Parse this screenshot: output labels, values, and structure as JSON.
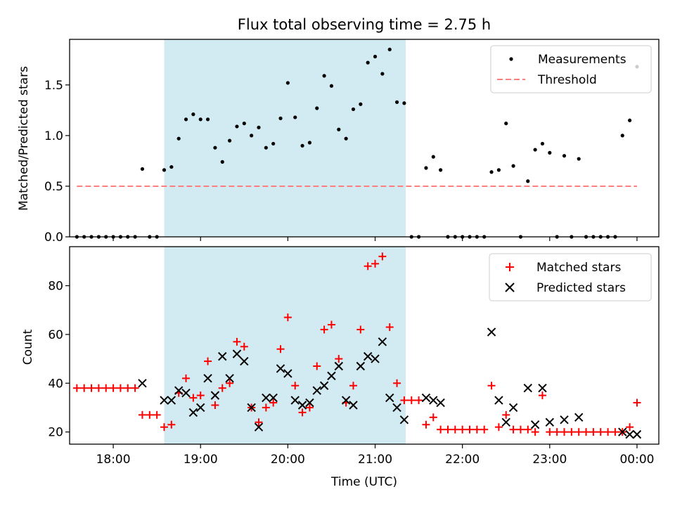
{
  "title": "Flux total observing time = 2.75 h",
  "shaded_region": {
    "start": "18:35",
    "end": "21:21",
    "color": "#add8e6"
  },
  "chart_data": [
    {
      "type": "scatter",
      "panel": "top",
      "ylabel": "Matched/Predicted stars",
      "xlim": [
        "17:30",
        "00:15"
      ],
      "ylim": [
        0,
        1.95
      ],
      "yticks": [
        0.0,
        0.5,
        1.0,
        1.5
      ],
      "ytick_labels": [
        "0.0",
        "0.5",
        "1.0",
        "1.5"
      ],
      "legend_position": "upper right",
      "series": [
        {
          "name": "Measurements",
          "marker": "dot",
          "color": "#000000",
          "points": [
            [
              "17:35",
              0
            ],
            [
              "17:40",
              0
            ],
            [
              "17:45",
              0
            ],
            [
              "17:50",
              0
            ],
            [
              "17:55",
              0
            ],
            [
              "18:00",
              0
            ],
            [
              "18:05",
              0
            ],
            [
              "18:10",
              0
            ],
            [
              "18:15",
              0
            ],
            [
              "18:25",
              0
            ],
            [
              "18:30",
              0
            ],
            [
              "18:20",
              0.67
            ],
            [
              "18:35",
              0.66
            ],
            [
              "18:40",
              0.69
            ],
            [
              "18:45",
              0.97
            ],
            [
              "18:50",
              1.16
            ],
            [
              "18:55",
              1.21
            ],
            [
              "19:00",
              1.16
            ],
            [
              "19:05",
              1.16
            ],
            [
              "19:10",
              0.88
            ],
            [
              "19:15",
              0.74
            ],
            [
              "19:20",
              0.95
            ],
            [
              "19:25",
              1.09
            ],
            [
              "19:30",
              1.12
            ],
            [
              "19:35",
              1.0
            ],
            [
              "19:40",
              1.08
            ],
            [
              "19:45",
              0.88
            ],
            [
              "19:50",
              0.92
            ],
            [
              "19:55",
              1.17
            ],
            [
              "20:00",
              1.52
            ],
            [
              "20:05",
              1.18
            ],
            [
              "20:10",
              0.9
            ],
            [
              "20:15",
              0.93
            ],
            [
              "20:20",
              1.27
            ],
            [
              "20:25",
              1.59
            ],
            [
              "20:30",
              1.49
            ],
            [
              "20:35",
              1.06
            ],
            [
              "20:40",
              0.97
            ],
            [
              "20:45",
              1.26
            ],
            [
              "20:50",
              1.31
            ],
            [
              "20:55",
              1.72
            ],
            [
              "21:00",
              1.78
            ],
            [
              "21:05",
              1.61
            ],
            [
              "21:10",
              1.85
            ],
            [
              "21:15",
              1.33
            ],
            [
              "21:20",
              1.32
            ],
            [
              "21:25",
              0
            ],
            [
              "21:30",
              0
            ],
            [
              "21:35",
              0.68
            ],
            [
              "21:40",
              0.79
            ],
            [
              "21:45",
              0.66
            ],
            [
              "21:50",
              0
            ],
            [
              "21:55",
              0
            ],
            [
              "22:00",
              0
            ],
            [
              "22:05",
              0
            ],
            [
              "22:10",
              0
            ],
            [
              "22:15",
              0
            ],
            [
              "22:20",
              0.64
            ],
            [
              "22:25",
              0.66
            ],
            [
              "22:30",
              1.12
            ],
            [
              "22:35",
              0.7
            ],
            [
              "22:40",
              0
            ],
            [
              "22:45",
              0.55
            ],
            [
              "22:50",
              0.86
            ],
            [
              "22:55",
              0.92
            ],
            [
              "23:00",
              0.83
            ],
            [
              "23:05",
              0
            ],
            [
              "23:10",
              0.8
            ],
            [
              "23:15",
              0
            ],
            [
              "23:20",
              0.77
            ],
            [
              "23:25",
              0
            ],
            [
              "23:30",
              0
            ],
            [
              "23:35",
              0
            ],
            [
              "23:40",
              0
            ],
            [
              "23:45",
              0
            ],
            [
              "23:50",
              1.0
            ],
            [
              "23:55",
              1.15
            ],
            [
              "00:00",
              1.68
            ]
          ]
        },
        {
          "name": "Threshold",
          "marker": "dashed-line",
          "color": "#ff7f7f",
          "points": [
            [
              "17:35",
              0.5
            ],
            [
              "00:00",
              0.5
            ]
          ]
        }
      ]
    },
    {
      "type": "scatter",
      "panel": "bottom",
      "xlabel": "Time (UTC)",
      "ylabel": "Count",
      "xlim": [
        "17:30",
        "00:15"
      ],
      "ylim": [
        15,
        96
      ],
      "yticks": [
        20,
        40,
        60,
        80
      ],
      "ytick_labels": [
        "20",
        "40",
        "60",
        "80"
      ],
      "xtick_labels": [
        "18:00",
        "19:00",
        "20:00",
        "21:00",
        "22:00",
        "23:00",
        "00:00"
      ],
      "legend_position": "upper right",
      "series": [
        {
          "name": "Matched stars",
          "marker": "plus",
          "color": "#ff0000",
          "points": [
            [
              "17:35",
              38
            ],
            [
              "17:40",
              38
            ],
            [
              "17:45",
              38
            ],
            [
              "17:50",
              38
            ],
            [
              "17:55",
              38
            ],
            [
              "18:00",
              38
            ],
            [
              "18:05",
              38
            ],
            [
              "18:10",
              38
            ],
            [
              "18:15",
              38
            ],
            [
              "18:20",
              27
            ],
            [
              "18:25",
              27
            ],
            [
              "18:30",
              27
            ],
            [
              "18:35",
              22
            ],
            [
              "18:40",
              23
            ],
            [
              "18:45",
              36
            ],
            [
              "18:50",
              42
            ],
            [
              "18:55",
              34
            ],
            [
              "19:00",
              35
            ],
            [
              "19:05",
              49
            ],
            [
              "19:10",
              31
            ],
            [
              "19:15",
              38
            ],
            [
              "19:20",
              40
            ],
            [
              "19:25",
              57
            ],
            [
              "19:30",
              55
            ],
            [
              "19:35",
              30
            ],
            [
              "19:40",
              24
            ],
            [
              "19:45",
              30
            ],
            [
              "19:50",
              32
            ],
            [
              "19:55",
              54
            ],
            [
              "20:00",
              67
            ],
            [
              "20:05",
              39
            ],
            [
              "20:10",
              28
            ],
            [
              "20:15",
              30
            ],
            [
              "20:20",
              47
            ],
            [
              "20:25",
              62
            ],
            [
              "20:30",
              64
            ],
            [
              "20:35",
              50
            ],
            [
              "20:40",
              32
            ],
            [
              "20:45",
              39
            ],
            [
              "20:50",
              62
            ],
            [
              "20:55",
              88
            ],
            [
              "21:00",
              89
            ],
            [
              "21:05",
              92
            ],
            [
              "21:10",
              63
            ],
            [
              "21:15",
              40
            ],
            [
              "21:20",
              33
            ],
            [
              "21:25",
              33
            ],
            [
              "21:30",
              33
            ],
            [
              "21:35",
              23
            ],
            [
              "21:40",
              26
            ],
            [
              "21:45",
              21
            ],
            [
              "21:50",
              21
            ],
            [
              "21:55",
              21
            ],
            [
              "22:00",
              21
            ],
            [
              "22:05",
              21
            ],
            [
              "22:10",
              21
            ],
            [
              "22:15",
              21
            ],
            [
              "22:20",
              39
            ],
            [
              "22:25",
              22
            ],
            [
              "22:30",
              27
            ],
            [
              "22:35",
              21
            ],
            [
              "22:40",
              21
            ],
            [
              "22:45",
              21
            ],
            [
              "22:50",
              20
            ],
            [
              "22:55",
              35
            ],
            [
              "23:00",
              20
            ],
            [
              "23:05",
              20
            ],
            [
              "23:10",
              20
            ],
            [
              "23:15",
              20
            ],
            [
              "23:20",
              20
            ],
            [
              "23:25",
              20
            ],
            [
              "23:30",
              20
            ],
            [
              "23:35",
              20
            ],
            [
              "23:40",
              20
            ],
            [
              "23:45",
              20
            ],
            [
              "23:50",
              20
            ],
            [
              "23:55",
              22
            ],
            [
              "00:00",
              32
            ]
          ]
        },
        {
          "name": "Predicted stars",
          "marker": "x",
          "color": "#000000",
          "points": [
            [
              "18:20",
              40
            ],
            [
              "18:35",
              33
            ],
            [
              "18:40",
              33
            ],
            [
              "18:45",
              37
            ],
            [
              "18:50",
              36
            ],
            [
              "18:55",
              28
            ],
            [
              "19:00",
              30
            ],
            [
              "19:05",
              42
            ],
            [
              "19:10",
              35
            ],
            [
              "19:15",
              51
            ],
            [
              "19:20",
              42
            ],
            [
              "19:25",
              52
            ],
            [
              "19:30",
              49
            ],
            [
              "19:35",
              30
            ],
            [
              "19:40",
              22
            ],
            [
              "19:45",
              34
            ],
            [
              "19:50",
              34
            ],
            [
              "19:55",
              46
            ],
            [
              "20:00",
              44
            ],
            [
              "20:05",
              33
            ],
            [
              "20:10",
              31
            ],
            [
              "20:15",
              32
            ],
            [
              "20:20",
              37
            ],
            [
              "20:25",
              39
            ],
            [
              "20:30",
              43
            ],
            [
              "20:35",
              47
            ],
            [
              "20:40",
              33
            ],
            [
              "20:45",
              31
            ],
            [
              "20:50",
              47
            ],
            [
              "20:55",
              51
            ],
            [
              "21:00",
              50
            ],
            [
              "21:05",
              57
            ],
            [
              "21:10",
              34
            ],
            [
              "21:15",
              30
            ],
            [
              "21:20",
              25
            ],
            [
              "21:35",
              34
            ],
            [
              "21:40",
              33
            ],
            [
              "21:45",
              32
            ],
            [
              "22:20",
              61
            ],
            [
              "22:25",
              33
            ],
            [
              "22:30",
              24
            ],
            [
              "22:35",
              30
            ],
            [
              "22:45",
              38
            ],
            [
              "22:50",
              23
            ],
            [
              "22:55",
              38
            ],
            [
              "23:00",
              24
            ],
            [
              "23:10",
              25
            ],
            [
              "23:20",
              26
            ],
            [
              "23:50",
              20
            ],
            [
              "23:55",
              19
            ],
            [
              "00:00",
              19
            ]
          ]
        }
      ]
    }
  ]
}
